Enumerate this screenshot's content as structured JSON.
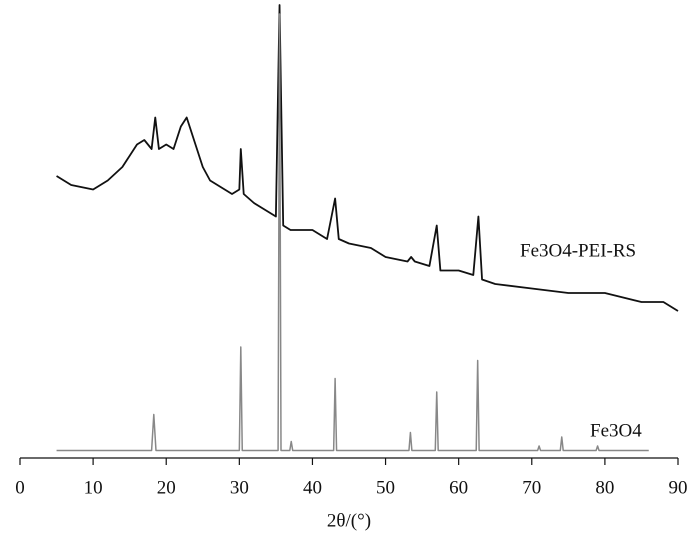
{
  "chart_data": {
    "type": "line",
    "xlabel": "2θ/(°)",
    "xlim": [
      0,
      90
    ],
    "xticks": [
      0,
      10,
      20,
      30,
      40,
      50,
      60,
      70,
      80,
      90
    ],
    "ylim": [
      0,
      100
    ],
    "series": [
      {
        "name": "Fe3O4-PEI-RS",
        "color": "#111111",
        "x": [
          5,
          7,
          10,
          12,
          14,
          16,
          17,
          18,
          18.5,
          19,
          20,
          21,
          22,
          22.8,
          24,
          25,
          26,
          28,
          29,
          30,
          30.2,
          30.6,
          32,
          34,
          35,
          35.5,
          36,
          37,
          40,
          42,
          43.1,
          43.6,
          45,
          48,
          50,
          53,
          53.5,
          54,
          56,
          57,
          57.5,
          60,
          62,
          62.7,
          63.2,
          65,
          70,
          75,
          80,
          85,
          88,
          90
        ],
        "values": [
          62,
          60,
          59,
          61,
          64,
          69,
          70,
          68,
          75,
          68,
          69,
          68,
          73,
          75,
          69,
          64,
          61,
          59,
          58,
          59,
          68,
          58,
          56,
          54,
          53,
          100,
          51,
          50,
          50,
          48,
          57,
          48,
          47,
          46,
          44,
          43,
          44,
          43,
          42,
          51,
          41,
          41,
          40,
          53,
          39,
          38,
          37,
          36,
          36,
          34,
          34,
          32
        ]
      },
      {
        "name": "Fe3O4",
        "color": "#888888",
        "x": [
          5,
          18,
          18.3,
          18.6,
          30,
          30.2,
          30.4,
          35.3,
          35.5,
          35.7,
          36.9,
          37.1,
          37.3,
          42.9,
          43.1,
          43.3,
          53.2,
          53.4,
          53.6,
          56.8,
          57,
          57.2,
          62.4,
          62.6,
          62.8,
          70.8,
          71,
          71.2,
          73.9,
          74.1,
          74.3,
          78.8,
          79,
          79.2,
          86
        ],
        "values": [
          1,
          1,
          9,
          1,
          1,
          24,
          1,
          1,
          98,
          1,
          1,
          3,
          1,
          1,
          17,
          1,
          1,
          5,
          1,
          1,
          14,
          1,
          1,
          21,
          1,
          1,
          2,
          1,
          1,
          4,
          1,
          1,
          2,
          1,
          1
        ]
      }
    ]
  }
}
